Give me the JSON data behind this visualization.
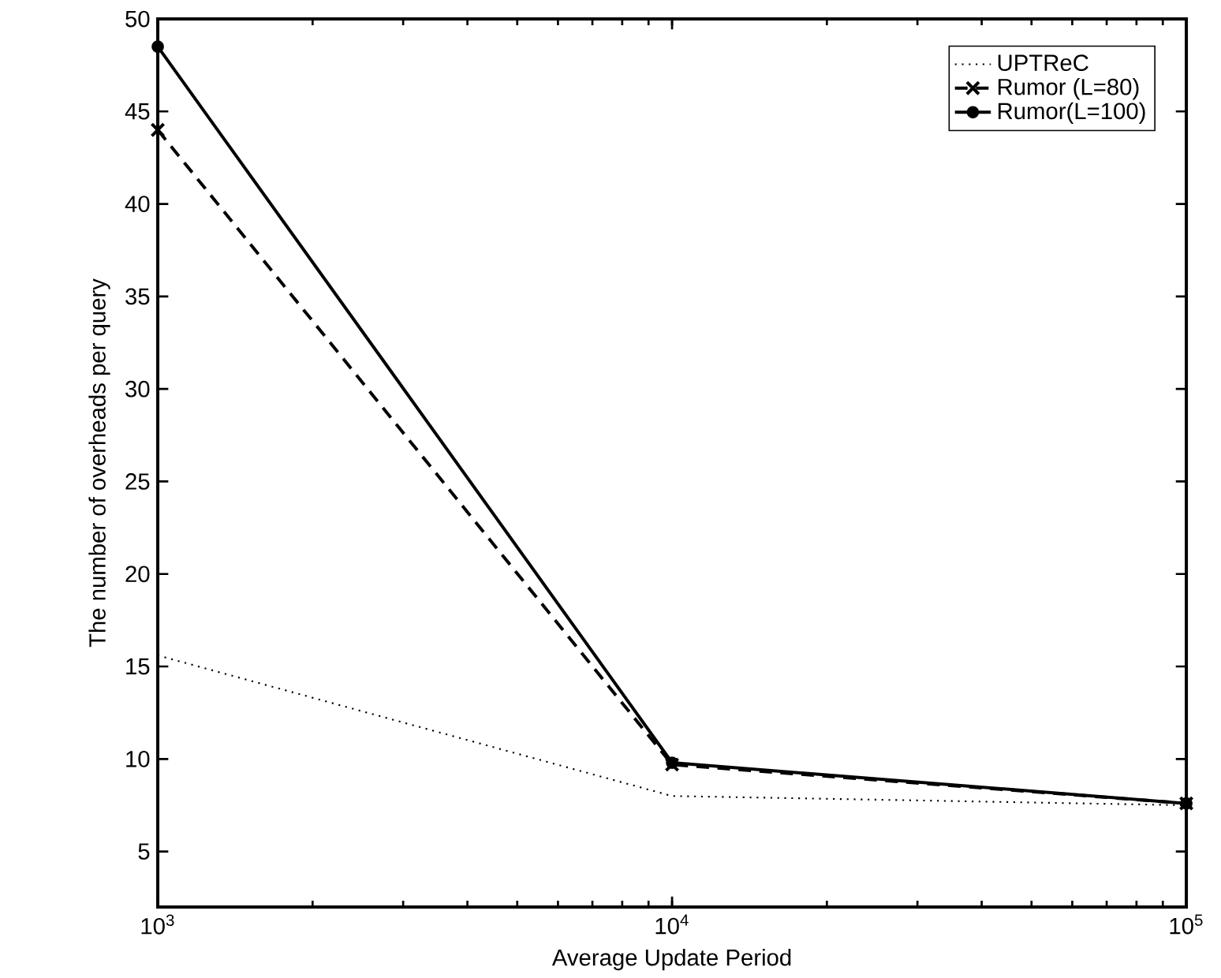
{
  "chart_data": {
    "type": "line",
    "xlabel": "Average Update Period",
    "ylabel": "The number of overheads per query",
    "log": "x",
    "xlim": [
      1000,
      100000
    ],
    "ylim": [
      2,
      50
    ],
    "xticks": [
      {
        "value": 1000,
        "label": "10$^{3}$"
      },
      {
        "value": 10000,
        "label": "10$^{4}$"
      },
      {
        "value": 100000,
        "label": "10$^{5}$"
      }
    ],
    "yticks": [
      5,
      10,
      15,
      20,
      25,
      30,
      35,
      40,
      45,
      50
    ],
    "x": [
      1000,
      10000,
      100000
    ],
    "legend": "top right",
    "grid": false,
    "series": [
      {
        "name": "UPTReC",
        "color": "#000000",
        "values": [
          15.6,
          8.0,
          7.5
        ],
        "line_style": "dotted",
        "marker": "none"
      },
      {
        "name": "Rumor (L=80)",
        "color": "#000000",
        "values": [
          44.0,
          9.7,
          7.6
        ],
        "line_style": "dashed",
        "marker": "cross"
      },
      {
        "name": "Rumor(L=100)",
        "color": "#000000",
        "values": [
          48.5,
          9.8,
          7.6
        ],
        "line_style": "solid",
        "marker": "circle"
      }
    ]
  }
}
